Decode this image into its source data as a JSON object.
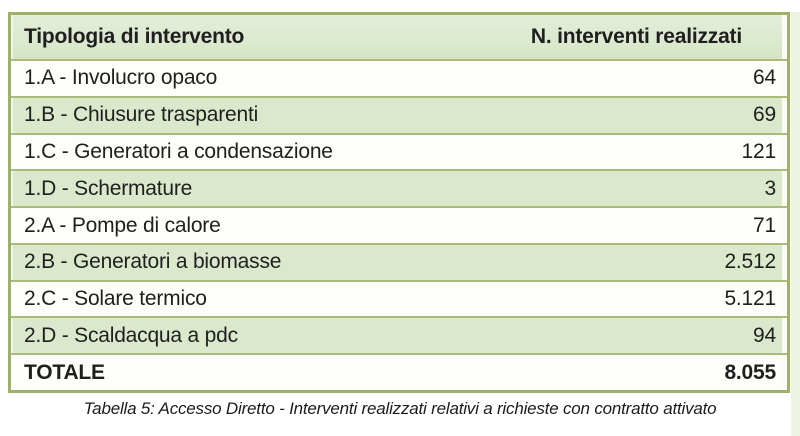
{
  "table": {
    "header": {
      "type_label": "Tipologia di intervento",
      "count_label": "N. interventi realizzati"
    },
    "rows": [
      {
        "label": "1.A - Involucro opaco",
        "value": "64"
      },
      {
        "label": "1.B - Chiusure trasparenti",
        "value": "69"
      },
      {
        "label": "1.C - Generatori a condensazione",
        "value": "121"
      },
      {
        "label": "1.D - Schermature",
        "value": "3"
      },
      {
        "label": "2.A - Pompe di calore",
        "value": "71"
      },
      {
        "label": "2.B - Generatori a biomasse",
        "value": "2.512"
      },
      {
        "label": "2.C - Solare termico",
        "value": "5.121"
      },
      {
        "label": "2.D - Scaldacqua a pdc",
        "value": "94"
      }
    ],
    "total": {
      "label": "TOTALE",
      "value": "8.055"
    }
  },
  "caption": "Tabella 5: Accesso Diretto - Interventi realizzati relativi a richieste con contratto attivato",
  "colors": {
    "border_olive": "#9cb26a",
    "separator_olive": "#a9bc7e",
    "row_green": "#dce8cc",
    "header_green": "#dcead0",
    "row_white": "#fdfdfa",
    "text": "#1f1f1f"
  }
}
